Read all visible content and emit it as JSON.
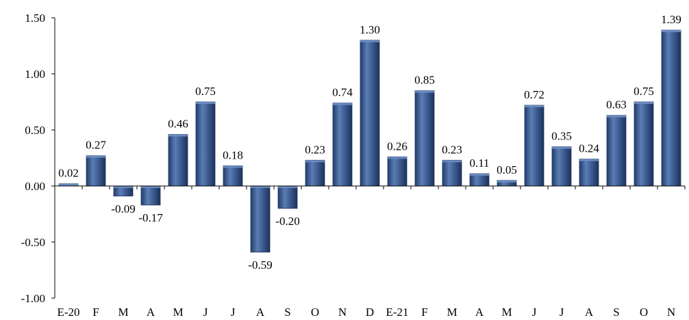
{
  "chart_data": {
    "type": "bar",
    "categories": [
      "E-20",
      "F",
      "M",
      "A",
      "M",
      "J",
      "J",
      "A",
      "S",
      "O",
      "N",
      "D",
      "E-21",
      "F",
      "M",
      "A",
      "M",
      "J",
      "J",
      "A",
      "S",
      "O",
      "N"
    ],
    "values": [
      0.02,
      0.27,
      -0.09,
      -0.17,
      0.46,
      0.75,
      0.18,
      -0.59,
      -0.2,
      0.23,
      0.74,
      1.3,
      0.26,
      0.85,
      0.23,
      0.11,
      0.05,
      0.72,
      0.35,
      0.24,
      0.63,
      0.75,
      1.39
    ],
    "data_labels": [
      "0.02",
      "0.27",
      "-0.09",
      "-0.17",
      "0.46",
      "0.75",
      "0.18",
      "-0.59",
      "-0.20",
      "0.23",
      "0.74",
      "1.30",
      "0.26",
      "0.85",
      "0.23",
      "0.11",
      "0.05",
      "0.72",
      "0.35",
      "0.24",
      "0.63",
      "0.75",
      "1.39"
    ],
    "title": "",
    "xlabel": "",
    "ylabel": "",
    "ylim": [
      -1.0,
      1.5
    ],
    "y_ticks": [
      "-1.00",
      "-0.50",
      "0.00",
      "0.50",
      "1.00",
      "1.50"
    ],
    "grid": false,
    "legend": "none",
    "colors": {
      "bar": "#3a5a8c",
      "bar_light": "#6e8fc4",
      "bar_dark": "#1f3560",
      "axis": "#000000"
    }
  }
}
